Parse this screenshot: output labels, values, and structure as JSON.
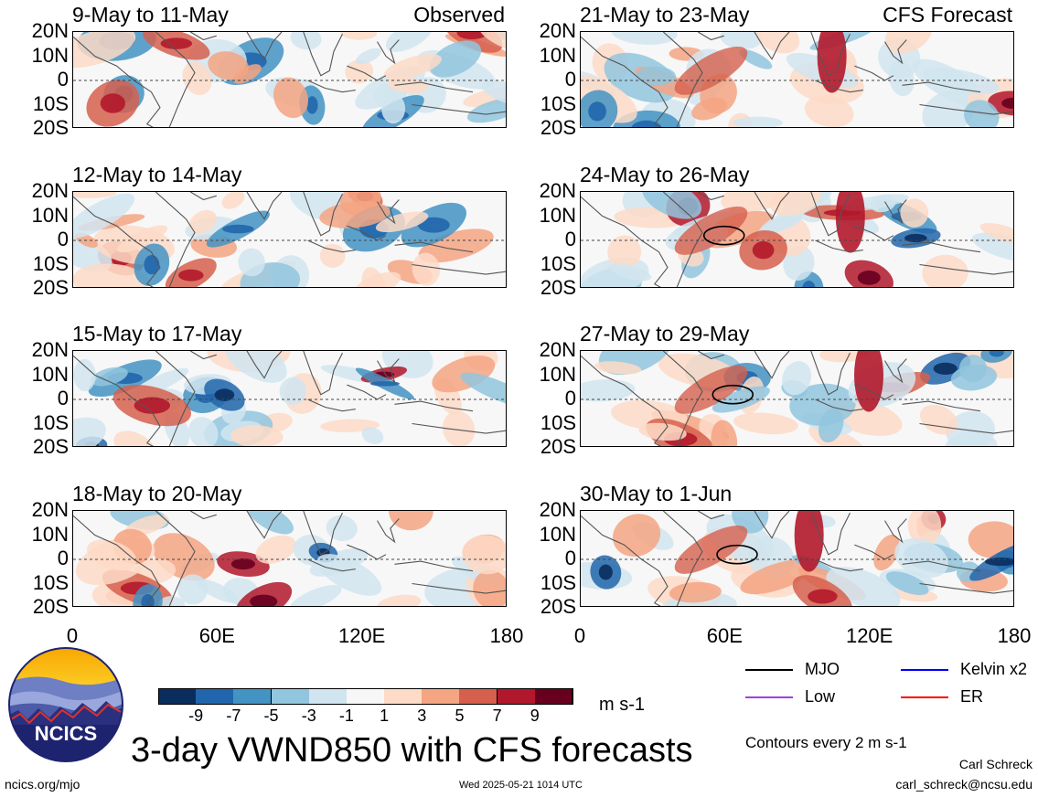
{
  "chart_data": {
    "type": "heatmap",
    "title": "3-day VWND850 with CFS forecasts",
    "variable": "VWND850",
    "units": "m s-1",
    "panel_tags": {
      "observed": "Observed",
      "forecast": "CFS Forecast"
    },
    "lat_ticks": [
      "20N",
      "10N",
      "0",
      "10S",
      "20S"
    ],
    "lon_ticks": [
      "0",
      "60E",
      "120E",
      "180"
    ],
    "lat_range": [
      -20,
      20
    ],
    "lon_range": [
      0,
      180
    ],
    "colorbar": {
      "ticks": [
        "-9",
        "-7",
        "-5",
        "-3",
        "-1",
        "1",
        "3",
        "5",
        "7",
        "9"
      ],
      "colors": [
        "#0a2d5e",
        "#2166ac",
        "#4393c3",
        "#92c5de",
        "#d1e5f0",
        "#f7f7f7",
        "#fddbc7",
        "#f4a582",
        "#d6604d",
        "#b2182b",
        "#67001f"
      ]
    },
    "panels": [
      {
        "period": "9-May to 11-May",
        "type": "observed",
        "col": 0,
        "row": 0
      },
      {
        "period": "12-May to 14-May",
        "type": "observed",
        "col": 0,
        "row": 1
      },
      {
        "period": "15-May to 17-May",
        "type": "observed",
        "col": 0,
        "row": 2
      },
      {
        "period": "18-May to 20-May",
        "type": "observed",
        "col": 0,
        "row": 3
      },
      {
        "period": "21-May to 23-May",
        "type": "forecast",
        "col": 1,
        "row": 0
      },
      {
        "period": "24-May to 26-May",
        "type": "forecast",
        "col": 1,
        "row": 1
      },
      {
        "period": "27-May to 29-May",
        "type": "forecast",
        "col": 1,
        "row": 2
      },
      {
        "period": "30-May to 1-Jun",
        "type": "forecast",
        "col": 1,
        "row": 3
      }
    ],
    "legend": [
      {
        "label": "MJO",
        "color": "#000000"
      },
      {
        "label": "Kelvin x2",
        "color": "#0000ff"
      },
      {
        "label": "Low",
        "color": "#a040e0"
      },
      {
        "label": "ER",
        "color": "#ff0000"
      }
    ],
    "contour_note": "Contours every 2 m s-1"
  },
  "footer": {
    "left": "ncics.org/mjo",
    "center": "Wed 2025-05-21 1014 UTC",
    "author": "Carl Schreck",
    "email": "carl_schreck@ncsu.edu"
  },
  "logo": {
    "text": "NCICS"
  }
}
